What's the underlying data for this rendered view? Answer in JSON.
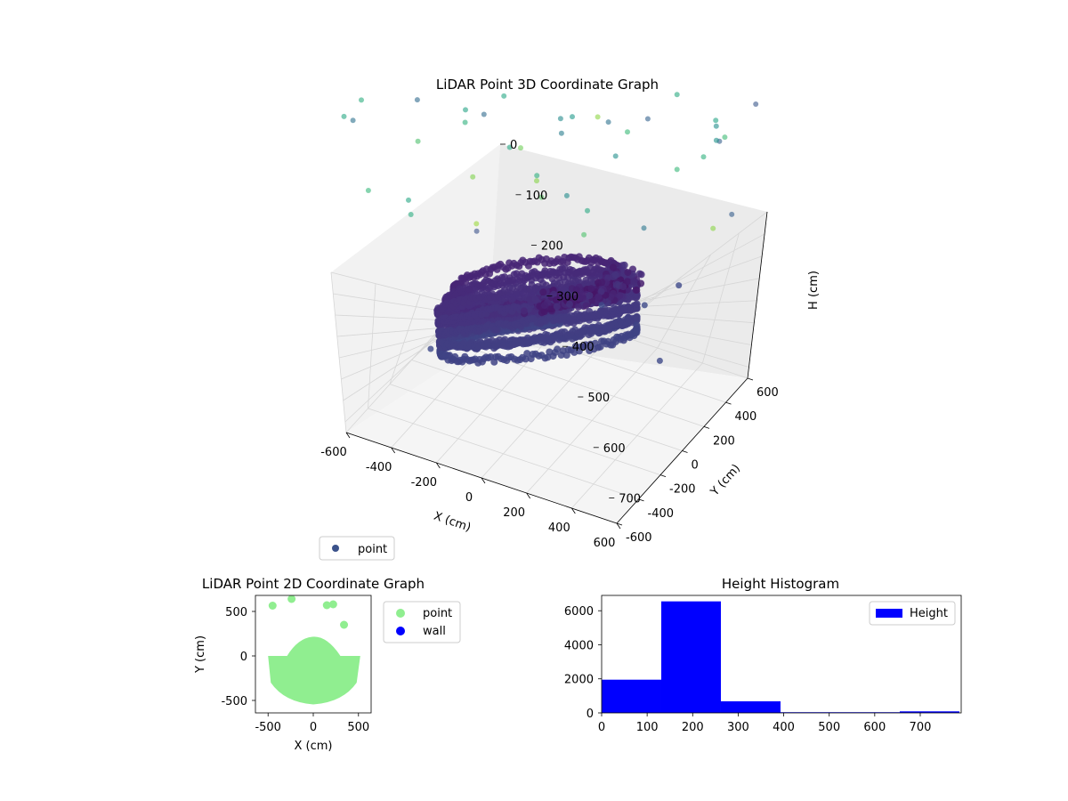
{
  "chart_data": [
    {
      "type": "scatter3d",
      "title": "LiDAR Point 3D Coordinate Graph",
      "xlabel": "X (cm)",
      "ylabel": "Y (cm)",
      "zlabel": "H (cm)",
      "xlim": [
        -600,
        600
      ],
      "ylim": [
        -600,
        600
      ],
      "zlim": [
        0,
        750
      ],
      "z_inverted": true,
      "x_ticks": [
        -600,
        -400,
        -200,
        0,
        200,
        400,
        600
      ],
      "y_ticks": [
        -600,
        -400,
        -200,
        0,
        200,
        400,
        600
      ],
      "z_ticks": [
        0,
        100,
        200,
        300,
        400,
        500,
        600,
        700
      ],
      "colormap": "viridis",
      "grid": true,
      "legend": {
        "entries": [
          "point"
        ],
        "position": "lower-left"
      },
      "series": [
        {
          "name": "point",
          "color": "#3b528b",
          "description_shape": "dense curved wall of points around the scanner at heights 150-450 cm, sparse points up to 750 cm"
        }
      ]
    },
    {
      "type": "scatter",
      "title": "LiDAR Point 2D Coordinate Graph",
      "xlabel": "X (cm)",
      "ylabel": "Y (cm)",
      "xlim": [
        -640,
        640
      ],
      "ylim": [
        -640,
        680
      ],
      "x_ticks": [
        -500,
        0,
        500
      ],
      "y_ticks": [
        -500,
        0,
        500
      ],
      "legend": {
        "entries": [
          "point",
          "wall"
        ],
        "position": "outside-right"
      },
      "series": [
        {
          "name": "point",
          "color": "#90ee90",
          "region": "filled half-disk, x from -500 to 520, y from -540 to 210",
          "outliers": [
            [
              -450,
              565
            ],
            [
              -240,
              640
            ],
            [
              150,
              570
            ],
            [
              220,
              580
            ],
            [
              340,
              350
            ]
          ]
        },
        {
          "name": "wall",
          "color": "#0000ff",
          "points": []
        }
      ]
    },
    {
      "type": "histogram",
      "title": "Height Histogram",
      "xlabel": "",
      "ylabel": "",
      "xlim": [
        0,
        790
      ],
      "ylim": [
        0,
        6900
      ],
      "x_ticks": [
        0,
        100,
        200,
        300,
        400,
        500,
        600,
        700
      ],
      "y_ticks": [
        0,
        2000,
        4000,
        6000
      ],
      "legend": {
        "entries": [
          "Height"
        ],
        "position": "top-right"
      },
      "series": [
        {
          "name": "Height",
          "color": "#0000ff",
          "bin_edges": [
            0,
            131,
            262,
            393,
            524,
            655,
            786
          ],
          "counts": [
            1950,
            6550,
            680,
            40,
            40,
            90
          ]
        }
      ]
    }
  ]
}
